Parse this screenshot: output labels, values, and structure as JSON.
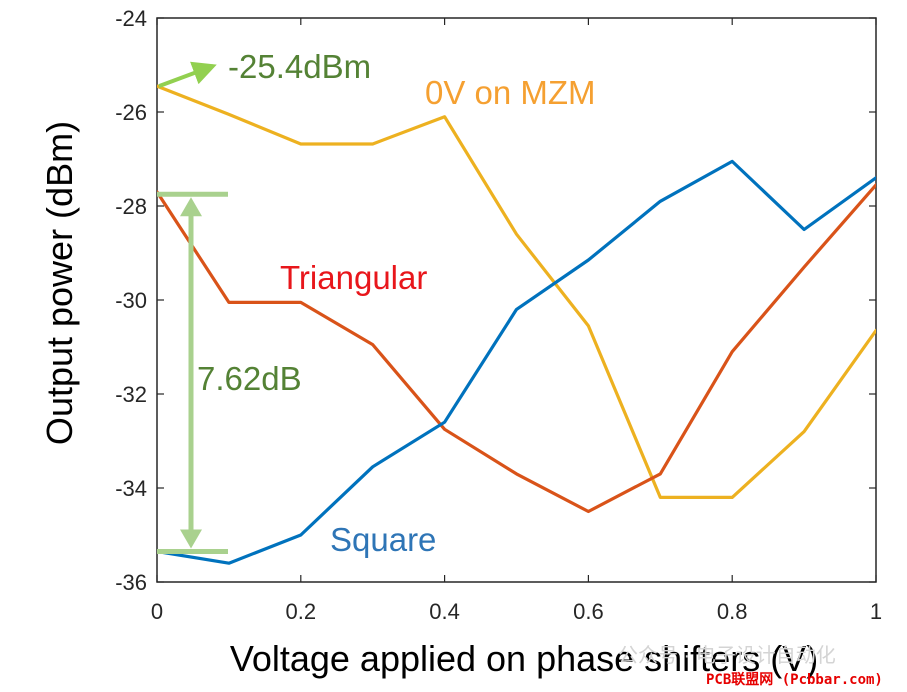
{
  "chart_data": {
    "type": "line",
    "title": "",
    "xlabel": "Voltage applied on phase shifters (V)",
    "ylabel": "Output power (dBm)",
    "xlim": [
      0,
      1
    ],
    "ylim": [
      -36,
      -24
    ],
    "x_ticks": [
      "0",
      "0.2",
      "0.4",
      "0.6",
      "0.8",
      "1"
    ],
    "x_tick_values": [
      0,
      0.2,
      0.4,
      0.6,
      0.8,
      1
    ],
    "y_ticks": [
      "-24",
      "-26",
      "-28",
      "-30",
      "-32",
      "-34",
      "-36"
    ],
    "y_tick_values": [
      -24,
      -26,
      -28,
      -30,
      -32,
      -34,
      -36
    ],
    "grid": false,
    "x": [
      0,
      0.1,
      0.2,
      0.3,
      0.4,
      0.5,
      0.6,
      0.7,
      0.8,
      0.9,
      1.0
    ],
    "series": [
      {
        "name": "0V on MZM",
        "color": "#EDB120",
        "label_color": "#F5A031",
        "values": [
          -25.45,
          -26.05,
          -26.68,
          -26.68,
          -26.1,
          -28.6,
          -30.55,
          -34.2,
          -34.2,
          -32.8,
          -30.65
        ]
      },
      {
        "name": "Triangular",
        "color": "#D95319",
        "label_color": "#E8161B",
        "values": [
          -27.7,
          -30.05,
          -30.05,
          -30.95,
          -32.75,
          -33.7,
          -34.5,
          -33.7,
          -31.1,
          -29.3,
          -27.55
        ]
      },
      {
        "name": "Square",
        "color": "#0072BD",
        "label_color": "#2E75B6",
        "values": [
          -35.35,
          -35.6,
          -35.0,
          -33.55,
          -32.6,
          -30.2,
          -29.15,
          -27.9,
          -27.05,
          -28.5,
          -27.4
        ]
      }
    ],
    "annotations": [
      {
        "name": "max-power-annotation",
        "text": "-25.4dBm",
        "color": "#548235",
        "arrow_color": "#92D050"
      },
      {
        "name": "extinction-annotation",
        "text": "7.62dB",
        "color": "#548235",
        "arrow_color": "#A9D18E",
        "from": -27.75,
        "to": -35.35
      }
    ]
  },
  "watermark": {
    "text": "公众号 · 电子设计自动化",
    "site": "PCB联盟网 (Pcbbar.com)",
    "site_color": "#E60000"
  }
}
